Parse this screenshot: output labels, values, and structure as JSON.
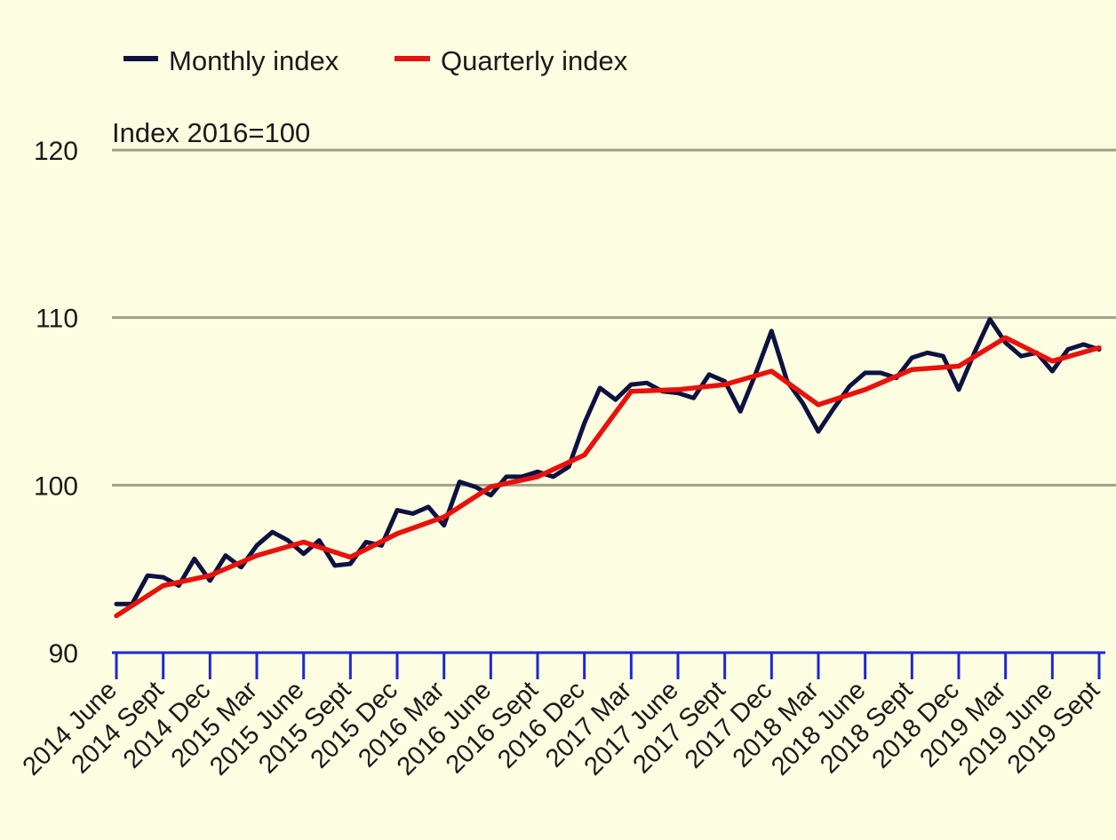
{
  "chart_data": {
    "type": "line",
    "ylabel": "Index 2016=100",
    "ylim": [
      90,
      120
    ],
    "y_ticks": [
      "90",
      "100",
      "110",
      "120"
    ],
    "grid": true,
    "legend_position": "top-left",
    "tick_labels": [
      "2014 June",
      "2014 Sept",
      "2014 Dec",
      "2015 Mar",
      "2015 June",
      "2015 Sept",
      "2015 Dec",
      "2016 Mar",
      "2016 June",
      "2016 Sept",
      "2016 Dec",
      "2017 Mar",
      "2017 June",
      "2017 Sept",
      "2017 Dec",
      "2018 Mar",
      "2018 June",
      "2018 Sept",
      "2018 Dec",
      "2019 Mar",
      "2019 June",
      "2019 Sept"
    ],
    "x": [
      "2014 June",
      "2014 July",
      "2014 Aug",
      "2014 Sept",
      "2014 Oct",
      "2014 Nov",
      "2014 Dec",
      "2015 Jan",
      "2015 Feb",
      "2015 Mar",
      "2015 Apr",
      "2015 May",
      "2015 June",
      "2015 July",
      "2015 Aug",
      "2015 Sept",
      "2015 Oct",
      "2015 Nov",
      "2015 Dec",
      "2016 Jan",
      "2016 Feb",
      "2016 Mar",
      "2016 Apr",
      "2016 May",
      "2016 June",
      "2016 July",
      "2016 Aug",
      "2016 Sept",
      "2016 Oct",
      "2016 Nov",
      "2016 Dec",
      "2017 Jan",
      "2017 Feb",
      "2017 Mar",
      "2017 Apr",
      "2017 May",
      "2017 June",
      "2017 July",
      "2017 Aug",
      "2017 Sept",
      "2017 Oct",
      "2017 Nov",
      "2017 Dec",
      "2018 Jan",
      "2018 Feb",
      "2018 Mar",
      "2018 Apr",
      "2018 May",
      "2018 June",
      "2018 July",
      "2018 Aug",
      "2018 Sept",
      "2018 Oct",
      "2018 Nov",
      "2018 Dec",
      "2019 Jan",
      "2019 Feb",
      "2019 Mar",
      "2019 Apr",
      "2019 May",
      "2019 June",
      "2019 July",
      "2019 Aug",
      "2019 Sept"
    ],
    "series": [
      {
        "name": "Monthly index",
        "color": "#0d1240",
        "values": [
          92.9,
          92.9,
          94.6,
          94.5,
          94.0,
          95.6,
          94.3,
          95.8,
          95.1,
          96.4,
          97.2,
          96.7,
          95.9,
          96.7,
          95.2,
          95.3,
          96.6,
          96.4,
          98.5,
          98.3,
          98.7,
          97.6,
          100.2,
          99.9,
          99.4,
          100.5,
          100.5,
          100.8,
          100.5,
          101.1,
          103.7,
          105.8,
          105.1,
          106.0,
          106.1,
          105.6,
          105.5,
          105.2,
          106.6,
          106.2,
          104.4,
          106.7,
          109.2,
          106.2,
          104.9,
          103.2,
          104.6,
          105.9,
          106.7,
          106.7,
          106.4,
          107.6,
          107.9,
          107.7,
          105.7,
          107.9,
          109.9,
          108.5,
          107.7,
          107.9,
          106.8,
          108.1,
          108.4,
          108.1
        ]
      },
      {
        "name": "Quarterly index",
        "color": "#e8120c",
        "x": [
          "2014 June",
          "2014 Sept",
          "2014 Dec",
          "2015 Mar",
          "2015 June",
          "2015 Sept",
          "2015 Dec",
          "2016 Mar",
          "2016 June",
          "2016 Sept",
          "2016 Dec",
          "2017 Mar",
          "2017 June",
          "2017 Sept",
          "2017 Dec",
          "2018 Mar",
          "2018 June",
          "2018 Sept",
          "2018 Dec",
          "2019 Mar",
          "2019 June",
          "2019 Sept"
        ],
        "values": [
          92.2,
          94.0,
          94.6,
          95.8,
          96.6,
          95.7,
          97.1,
          98.1,
          99.9,
          100.5,
          101.8,
          105.6,
          105.7,
          106.0,
          106.8,
          104.8,
          105.7,
          106.9,
          107.1,
          108.8,
          107.4,
          108.2
        ]
      }
    ]
  }
}
